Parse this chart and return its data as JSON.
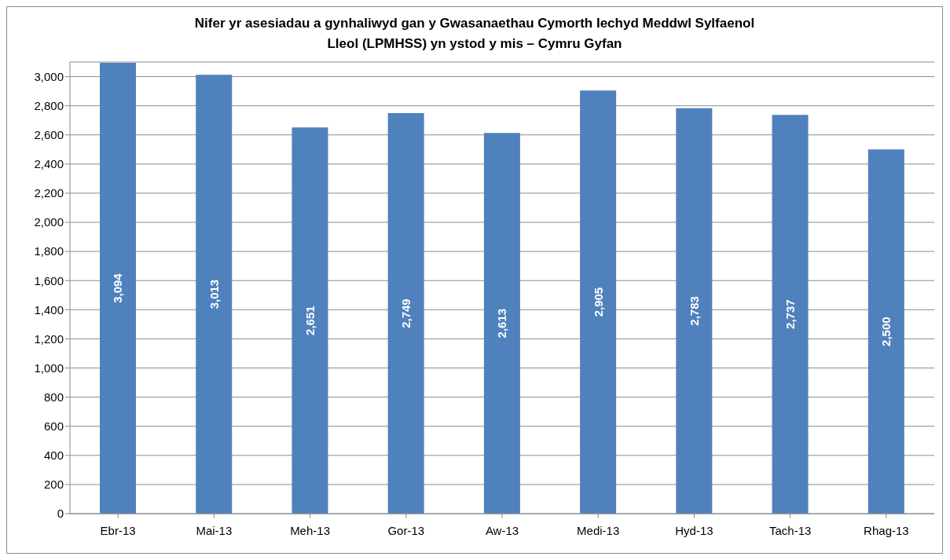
{
  "chart_data": {
    "type": "bar",
    "title": "Nifer yr asesiadau a gynhaliwyd gan y Gwasanaethau Cymorth Iechyd Meddwl Sylfaenol Lleol (LPMHSS) yn ystod y mis – Cymru Gyfan",
    "categories": [
      "Ebr-13",
      "Mai-13",
      "Meh-13",
      "Gor-13",
      "Aw-13",
      "Medi-13",
      "Hyd-13",
      "Tach-13",
      "Rhag-13"
    ],
    "values": [
      3094,
      3013,
      2651,
      2749,
      2613,
      2905,
      2783,
      2737,
      2500
    ],
    "color": "#4f81bd",
    "ylim": [
      0,
      3100
    ],
    "yticks": [
      {
        "value": 0,
        "label": "0"
      },
      {
        "value": 200,
        "label": "200"
      },
      {
        "value": 400,
        "label": "400"
      },
      {
        "value": 600,
        "label": "600"
      },
      {
        "value": 800,
        "label": "800"
      },
      {
        "value": 1000,
        "label": "1,000"
      },
      {
        "value": 1200,
        "label": "1,200"
      },
      {
        "value": 1400,
        "label": "1,400"
      },
      {
        "value": 1600,
        "label": "1,600"
      },
      {
        "value": 1800,
        "label": "1,800"
      },
      {
        "value": 2000,
        "label": "2,000"
      },
      {
        "value": 2200,
        "label": "2,200"
      },
      {
        "value": 2400,
        "label": "2,400"
      },
      {
        "value": 2600,
        "label": "2,600"
      },
      {
        "value": 2800,
        "label": "2,800"
      },
      {
        "value": 3000,
        "label": "3,000"
      }
    ],
    "value_labels": [
      "3,094",
      "3,013",
      "2,651",
      "2,749",
      "2,613",
      "2,905",
      "2,783",
      "2,737",
      "2,500"
    ],
    "grid": "y",
    "legend": false
  }
}
